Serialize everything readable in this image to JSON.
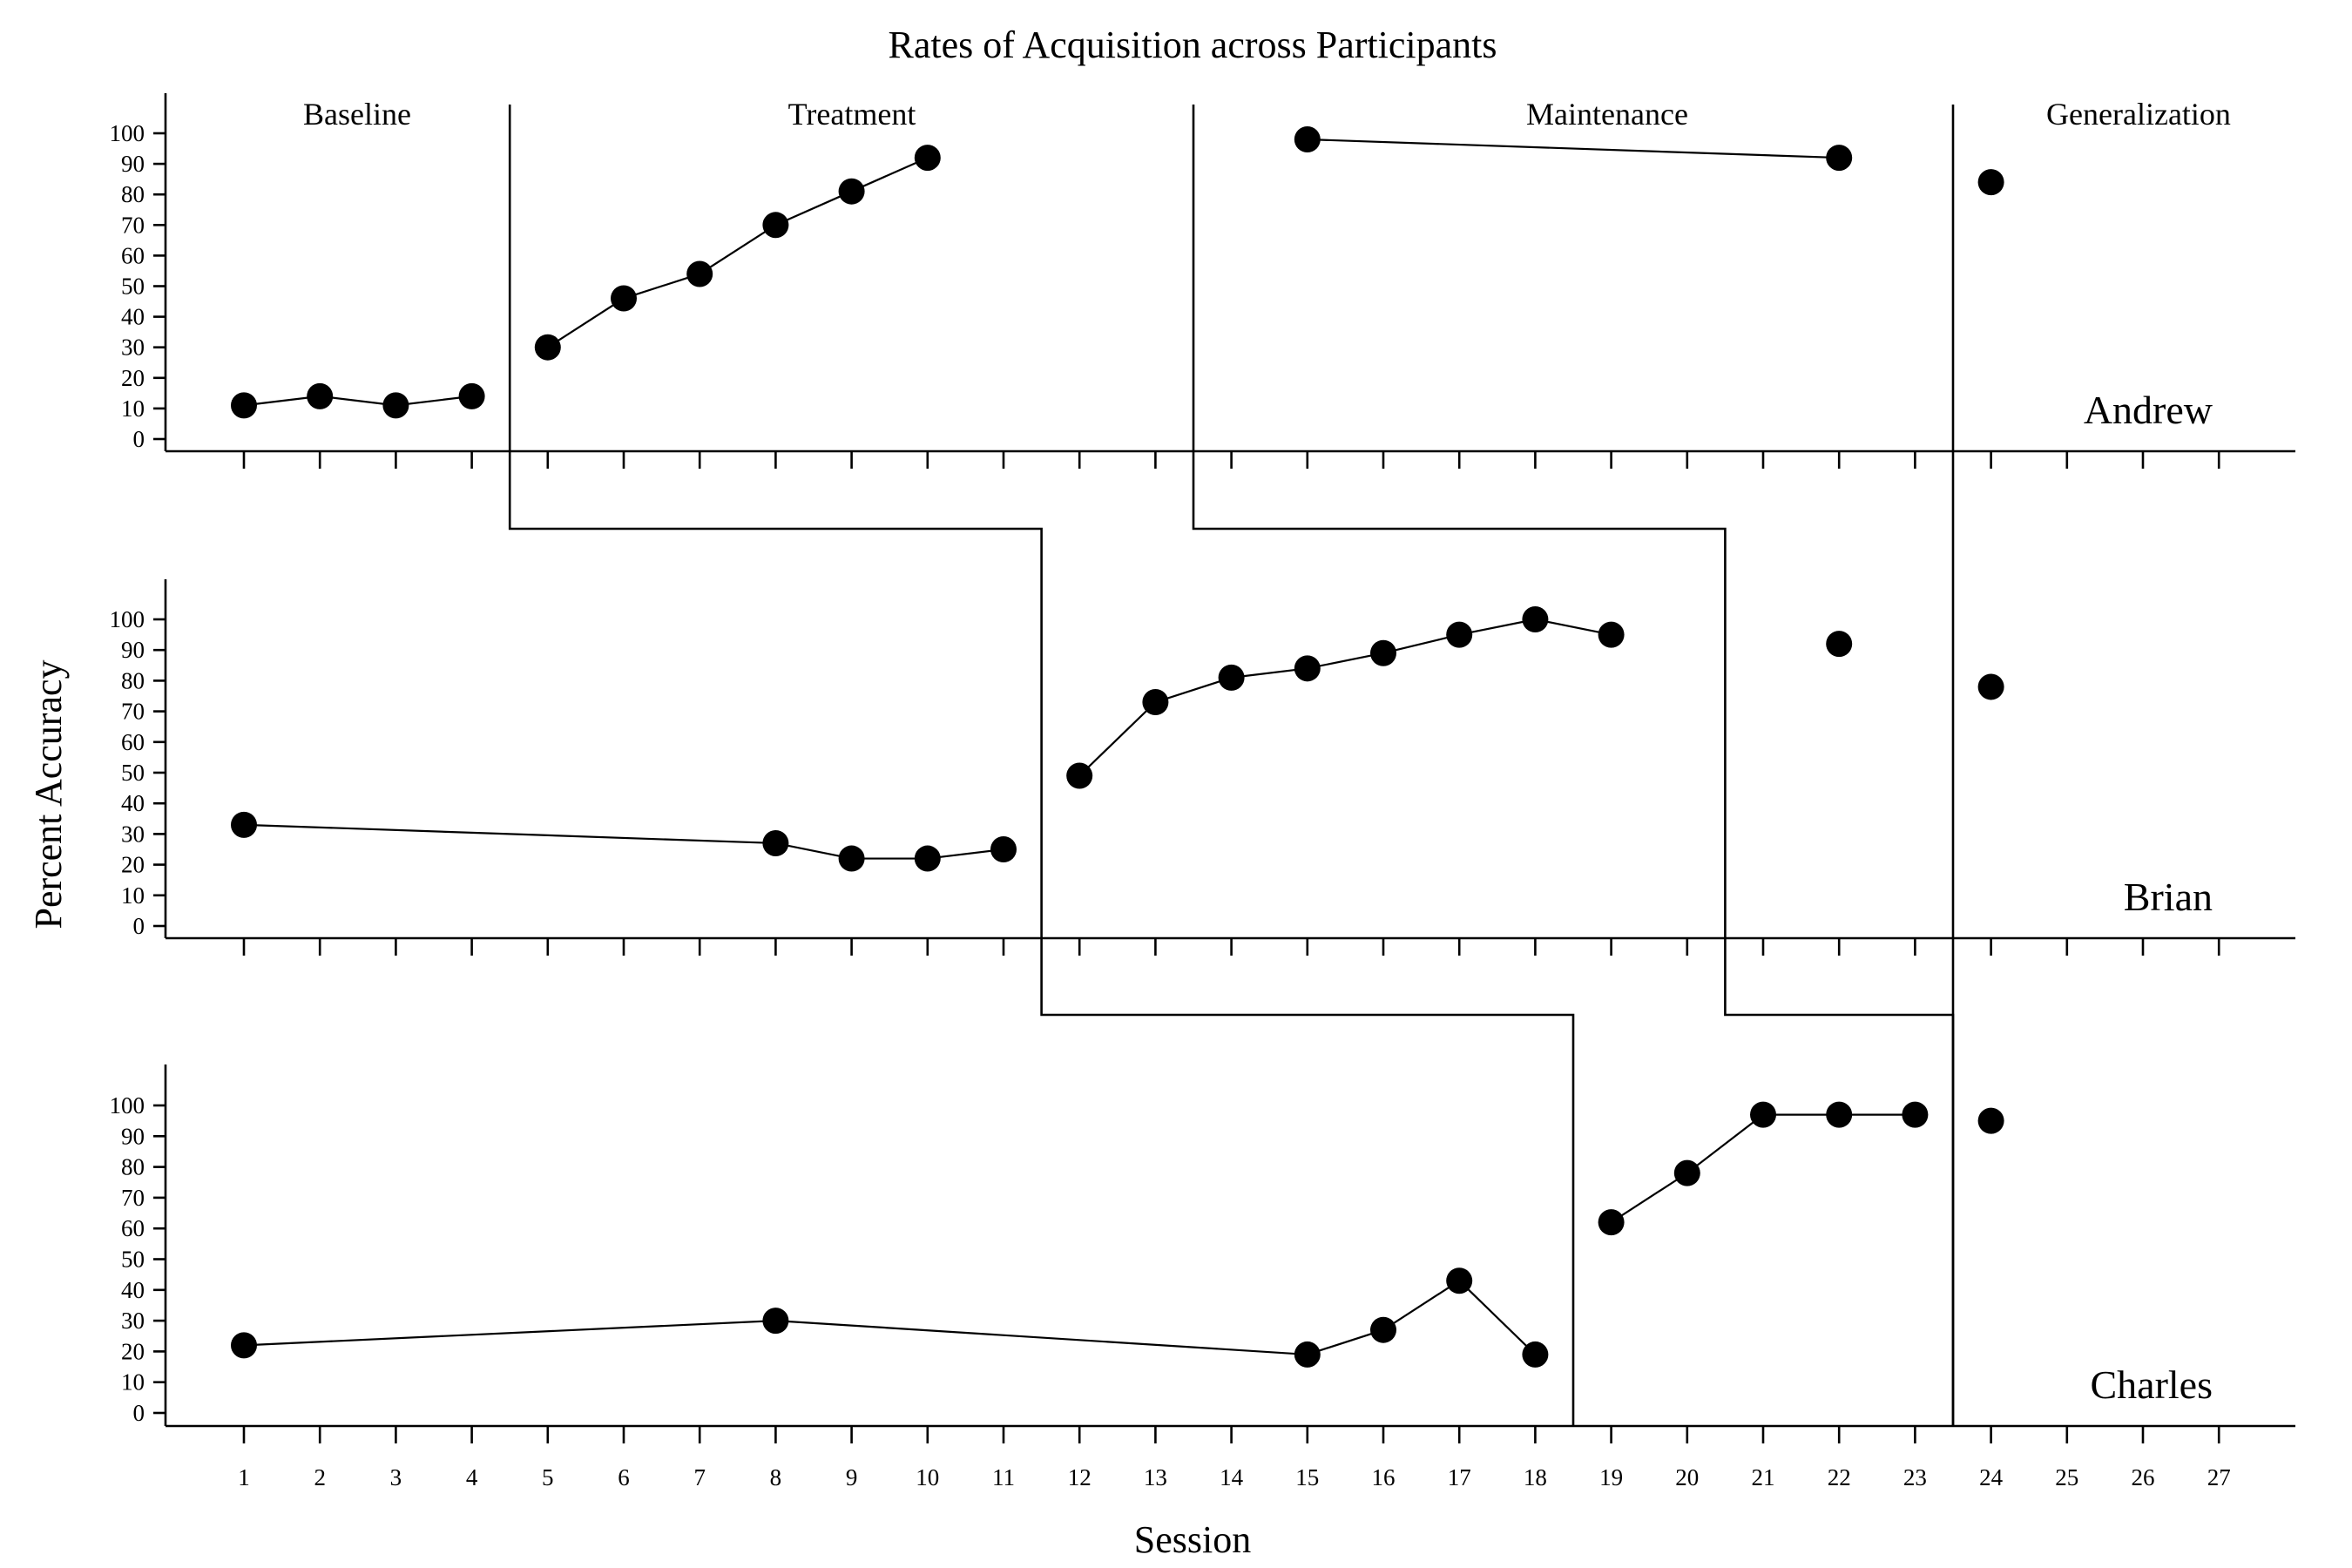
{
  "chart_data": {
    "type": "line",
    "title": "Rates of Acquisition across Participants",
    "xlabel": "Session",
    "ylabel": "Percent Accuracy",
    "xlim": [
      0,
      28
    ],
    "ylim": [
      0,
      100
    ],
    "x_ticks": [
      1,
      2,
      3,
      4,
      5,
      6,
      7,
      8,
      9,
      10,
      11,
      12,
      13,
      14,
      15,
      16,
      17,
      18,
      19,
      20,
      21,
      22,
      23,
      24,
      25,
      26,
      27
    ],
    "x_tick_labels": [
      "1",
      "2",
      "3",
      "4",
      "5",
      "6",
      "7",
      "8",
      "9",
      "10",
      "11",
      "12",
      "13",
      "14",
      "15",
      "16",
      "17",
      "18",
      "19",
      "20",
      "21",
      "22",
      "23",
      "24",
      "25",
      "26",
      "27"
    ],
    "y_ticks": [
      0,
      10,
      20,
      30,
      40,
      50,
      60,
      70,
      80,
      90,
      100
    ],
    "y_tick_labels": [
      "0",
      "10",
      "20",
      "30",
      "40",
      "50",
      "60",
      "70",
      "80",
      "90",
      "100"
    ],
    "phase_labels": [
      "Baseline",
      "Treatment",
      "Maintenance",
      "Generalization"
    ],
    "panels": [
      {
        "participant": "Andrew",
        "phase_changes": [
          4.5,
          13.5,
          23.5
        ],
        "segments": [
          {
            "x": [
              1,
              2,
              3,
              4
            ],
            "y": [
              11,
              14,
              11,
              14
            ]
          },
          {
            "x": [
              5,
              6,
              7,
              8,
              9,
              10
            ],
            "y": [
              30,
              46,
              54,
              70,
              81,
              92
            ]
          },
          {
            "x": [
              15,
              22
            ],
            "y": [
              98,
              92
            ]
          },
          {
            "x": [
              24
            ],
            "y": [
              84
            ]
          }
        ]
      },
      {
        "participant": "Brian",
        "phase_changes": [
          11.5,
          20.5,
          23.5
        ],
        "segments": [
          {
            "x": [
              1,
              8,
              9,
              10,
              11
            ],
            "y": [
              33,
              27,
              22,
              22,
              25
            ]
          },
          {
            "x": [
              12,
              13,
              14,
              15,
              16,
              17,
              18,
              19
            ],
            "y": [
              49,
              73,
              81,
              84,
              89,
              95,
              100,
              95
            ]
          },
          {
            "x": [
              22
            ],
            "y": [
              92
            ]
          },
          {
            "x": [
              24
            ],
            "y": [
              78
            ]
          }
        ]
      },
      {
        "participant": "Charles",
        "phase_changes": [
          18.5,
          23.5
        ],
        "segments": [
          {
            "x": [
              1,
              8,
              15,
              16,
              17,
              18
            ],
            "y": [
              22,
              30,
              19,
              27,
              43,
              19
            ]
          },
          {
            "x": [
              19,
              20,
              21,
              22,
              23
            ],
            "y": [
              62,
              78,
              97,
              97,
              97
            ]
          },
          {
            "x": [
              24
            ],
            "y": [
              95
            ]
          }
        ]
      }
    ]
  }
}
